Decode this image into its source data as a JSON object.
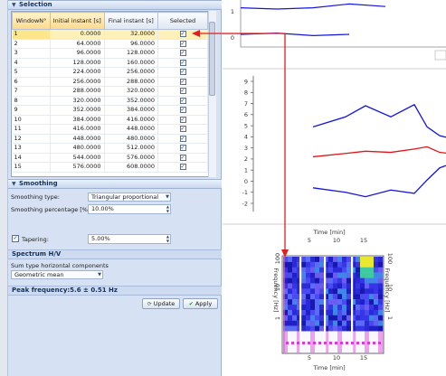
{
  "selection": {
    "title": "Selection",
    "columns": [
      "WindowN°",
      "Initial instant [s]",
      "Final instant [s]",
      "Selected"
    ],
    "rows": [
      {
        "n": "1",
        "initial": "0.0000",
        "final": "32.0000"
      },
      {
        "n": "2",
        "initial": "64.0000",
        "final": "96.0000"
      },
      {
        "n": "3",
        "initial": "96.0000",
        "final": "128.0000"
      },
      {
        "n": "4",
        "initial": "128.0000",
        "final": "160.0000"
      },
      {
        "n": "5",
        "initial": "224.0000",
        "final": "256.0000"
      },
      {
        "n": "6",
        "initial": "256.0000",
        "final": "288.0000"
      },
      {
        "n": "7",
        "initial": "288.0000",
        "final": "320.0000"
      },
      {
        "n": "8",
        "initial": "320.0000",
        "final": "352.0000"
      },
      {
        "n": "9",
        "initial": "352.0000",
        "final": "384.0000"
      },
      {
        "n": "10",
        "initial": "384.0000",
        "final": "416.0000"
      },
      {
        "n": "11",
        "initial": "416.0000",
        "final": "448.0000"
      },
      {
        "n": "12",
        "initial": "448.0000",
        "final": "480.0000"
      },
      {
        "n": "13",
        "initial": "480.0000",
        "final": "512.0000"
      },
      {
        "n": "14",
        "initial": "544.0000",
        "final": "576.0000"
      },
      {
        "n": "15",
        "initial": "576.0000",
        "final": "608.0000"
      }
    ],
    "check_mark": "✓"
  },
  "smoothing": {
    "title": "Smoothing",
    "type_label": "Smoothing type:",
    "type_value": "Triangular proportional",
    "percentage_label": "Smoothing percentage [%]:",
    "percentage_value": "10.00%",
    "tapering_label": "Tapering:",
    "tapering_value": "5.00%"
  },
  "spectrum": {
    "title": "Spectrum H/V",
    "sum_type_label": "Sum type horizontal components",
    "sum_type_value": "Geometric mean",
    "peak_frequency": "Peak frequency:5.6 ± 0.51 Hz"
  },
  "buttons": {
    "update": "Update",
    "apply": "Apply"
  },
  "colors": {
    "accent_red": "#e02020",
    "curve_blue": "#1414e0",
    "curve_red": "#e01414",
    "selected_row": "#fff1b8"
  },
  "chart_data": [
    {
      "type": "line",
      "note_visible_ticks": [
        "1",
        "0"
      ],
      "series": [
        {
          "values": [
            1.15,
            1.1,
            1.15,
            1.3,
            1.2
          ]
        },
        {
          "values": [
            0.1,
            0.15,
            0.05,
            0.1
          ]
        }
      ]
    },
    {
      "type": "line",
      "yticks": [
        "9",
        "8",
        "7",
        "6",
        "5",
        "4",
        "3",
        "2",
        "1",
        "0",
        "-1",
        "-2"
      ],
      "ylim": [
        -2,
        9
      ],
      "series": [
        {
          "values": [
            4.9,
            5.8,
            6.8,
            5.8,
            6.9,
            4.9,
            4.1,
            3.9
          ]
        },
        {
          "values": [
            2.2,
            2.5,
            2.7,
            2.6,
            2.9,
            3.1,
            2.6,
            2.5
          ]
        },
        {
          "values": [
            -0.6,
            -1.0,
            -1.4,
            -0.8,
            -1.1,
            0.1,
            1.2,
            1.5
          ]
        }
      ]
    },
    {
      "type": "heatmap",
      "xlabel": "Time [min]",
      "ylabel": "Frequency [Hz]",
      "xticks": [
        "5",
        "10",
        "15"
      ],
      "yticks": [
        "100",
        "10",
        "1"
      ]
    }
  ]
}
